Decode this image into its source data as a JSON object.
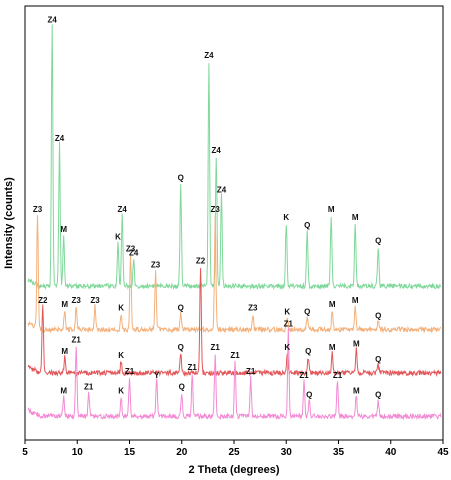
{
  "chart_data": {
    "type": "line",
    "xlabel": "2 Theta (degrees)",
    "ylabel": "Intensity (counts)",
    "xlim": [
      5,
      45
    ],
    "xticks": [
      5,
      10,
      15,
      20,
      25,
      30,
      35,
      40,
      45
    ],
    "yticks_shown": false,
    "grid": false,
    "legend": "none",
    "series": [
      {
        "color": "#7fd89a",
        "baseline": 3.3,
        "peaks": [
          {
            "x": 7.6,
            "y": 9.9,
            "label": "Z4"
          },
          {
            "x": 8.3,
            "y": 6.9,
            "label": "Z4"
          },
          {
            "x": 8.7,
            "y": 4.6,
            "label": "M"
          },
          {
            "x": 13.9,
            "y": 4.4,
            "label": "K"
          },
          {
            "x": 14.3,
            "y": 5.1,
            "label": "Z4"
          },
          {
            "x": 15.4,
            "y": 4.0,
            "label": "Z4"
          },
          {
            "x": 19.9,
            "y": 5.9,
            "label": "Q"
          },
          {
            "x": 22.6,
            "y": 9.0,
            "label": "Z4"
          },
          {
            "x": 23.3,
            "y": 6.6,
            "label": "Z4"
          },
          {
            "x": 23.8,
            "y": 5.6,
            "label": "Z4"
          },
          {
            "x": 30.0,
            "y": 4.9,
            "label": "K"
          },
          {
            "x": 32.0,
            "y": 4.7,
            "label": "Q"
          },
          {
            "x": 34.3,
            "y": 5.1,
            "label": "M"
          },
          {
            "x": 36.6,
            "y": 4.9,
            "label": "M"
          },
          {
            "x": 38.8,
            "y": 4.3,
            "label": "Q"
          }
        ]
      },
      {
        "color": "#f4b07a",
        "baseline": 2.2,
        "peaks": [
          {
            "x": 6.2,
            "y": 5.1,
            "label": "Z3"
          },
          {
            "x": 8.8,
            "y": 2.7,
            "label": "M"
          },
          {
            "x": 9.9,
            "y": 2.8,
            "label": "Z3"
          },
          {
            "x": 11.7,
            "y": 2.8,
            "label": "Z3"
          },
          {
            "x": 14.2,
            "y": 2.6,
            "label": "K"
          },
          {
            "x": 15.1,
            "y": 4.1,
            "label": "Z3"
          },
          {
            "x": 17.5,
            "y": 3.7,
            "label": "Z3"
          },
          {
            "x": 19.9,
            "y": 2.6,
            "label": "Q"
          },
          {
            "x": 23.2,
            "y": 5.1,
            "label": "Z3"
          },
          {
            "x": 26.8,
            "y": 2.6,
            "label": "Z3"
          },
          {
            "x": 30.1,
            "y": 2.5,
            "label": "K"
          },
          {
            "x": 32.0,
            "y": 2.5,
            "label": "Q"
          },
          {
            "x": 34.4,
            "y": 2.7,
            "label": "M"
          },
          {
            "x": 36.6,
            "y": 2.8,
            "label": "M"
          },
          {
            "x": 38.8,
            "y": 2.4,
            "label": "Q"
          }
        ]
      },
      {
        "color": "#e2575a",
        "baseline": 1.1,
        "peaks": [
          {
            "x": 6.7,
            "y": 2.8,
            "label": "Z2"
          },
          {
            "x": 8.8,
            "y": 1.5,
            "label": "M"
          },
          {
            "x": 14.2,
            "y": 1.4,
            "label": "K"
          },
          {
            "x": 19.9,
            "y": 1.6,
            "label": "Q"
          },
          {
            "x": 21.8,
            "y": 3.8,
            "label": "Z2"
          },
          {
            "x": 30.1,
            "y": 1.6,
            "label": "K"
          },
          {
            "x": 32.1,
            "y": 1.5,
            "label": "Q"
          },
          {
            "x": 34.4,
            "y": 1.6,
            "label": "M"
          },
          {
            "x": 36.7,
            "y": 1.7,
            "label": "M"
          },
          {
            "x": 38.8,
            "y": 1.3,
            "label": "Q"
          }
        ]
      },
      {
        "color": "#f28ad4",
        "baseline": 0.0,
        "peaks": [
          {
            "x": 8.7,
            "y": 0.5,
            "label": "M"
          },
          {
            "x": 9.9,
            "y": 1.8,
            "label": "Z1"
          },
          {
            "x": 11.1,
            "y": 0.6,
            "label": "Z1"
          },
          {
            "x": 14.2,
            "y": 0.5,
            "label": "K"
          },
          {
            "x": 15.0,
            "y": 1.0,
            "label": "Z1"
          },
          {
            "x": 17.6,
            "y": 0.9,
            "label": "Y"
          },
          {
            "x": 20.0,
            "y": 0.6,
            "label": "Q"
          },
          {
            "x": 21.0,
            "y": 1.1,
            "label": "Z1"
          },
          {
            "x": 23.2,
            "y": 1.6,
            "label": "Z1"
          },
          {
            "x": 25.1,
            "y": 1.4,
            "label": "Z1"
          },
          {
            "x": 26.6,
            "y": 1.0,
            "label": "Z1"
          },
          {
            "x": 30.2,
            "y": 2.2,
            "label": "Z1"
          },
          {
            "x": 31.7,
            "y": 0.9,
            "label": "Z1"
          },
          {
            "x": 32.2,
            "y": 0.4,
            "label": "Q"
          },
          {
            "x": 34.9,
            "y": 0.9,
            "label": "Z1"
          },
          {
            "x": 36.7,
            "y": 0.5,
            "label": "M"
          },
          {
            "x": 38.8,
            "y": 0.4,
            "label": "Q"
          }
        ]
      }
    ]
  }
}
